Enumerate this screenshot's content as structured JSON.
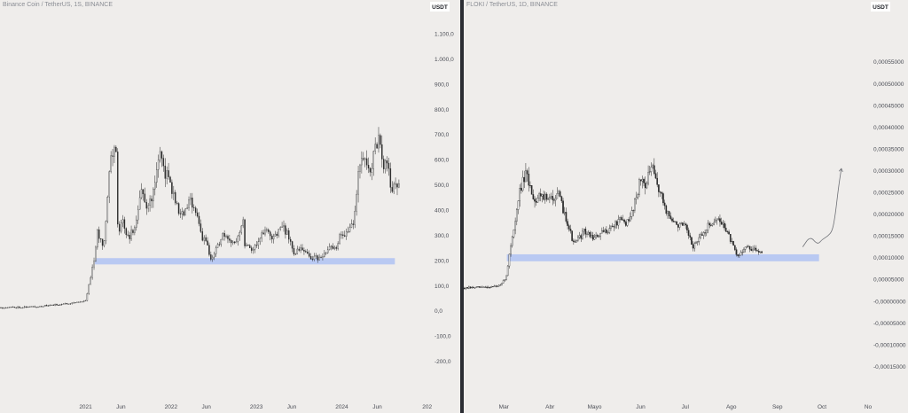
{
  "chart_data": [
    {
      "type": "candlestick",
      "title": "Binance Coin / TetherUS, 1S, BINANCE",
      "ylabel": "USDT",
      "ylim": [
        -250,
        1150
      ],
      "yticks": [
        "1.100,0",
        "1.000,0",
        "900,0",
        "800,0",
        "700,0",
        "600,0",
        "500,0",
        "400,0",
        "300,0",
        "200,0",
        "100,0",
        "0,0",
        "-100,0",
        "-200,0"
      ],
      "ytick_values": [
        1100,
        1000,
        900,
        800,
        700,
        600,
        500,
        400,
        300,
        200,
        100,
        0,
        -100,
        -200
      ],
      "xlim": [
        "2020-01-01",
        "2025-01-01"
      ],
      "xticks": [
        {
          "label": "2021",
          "date": "2021-01-01"
        },
        {
          "label": "Jun",
          "date": "2021-06-01"
        },
        {
          "label": "2022",
          "date": "2022-01-01"
        },
        {
          "label": "Jun",
          "date": "2022-06-01"
        },
        {
          "label": "2023",
          "date": "2023-01-01"
        },
        {
          "label": "Jun",
          "date": "2023-06-01"
        },
        {
          "label": "2024",
          "date": "2024-01-01"
        },
        {
          "label": "Jun",
          "date": "2024-06-01"
        },
        {
          "label": "202",
          "date": "2024-12-31"
        }
      ],
      "price_path": [
        [
          "2020-01-01",
          14
        ],
        [
          "2020-06-01",
          17
        ],
        [
          "2020-10-01",
          28
        ],
        [
          "2020-12-15",
          38
        ],
        [
          "2021-01-01",
          40
        ],
        [
          "2021-02-05",
          200
        ],
        [
          "2021-02-20",
          310
        ],
        [
          "2021-03-20",
          260
        ],
        [
          "2021-04-15",
          600
        ],
        [
          "2021-05-10",
          650
        ],
        [
          "2021-05-20",
          300
        ],
        [
          "2021-06-10",
          360
        ],
        [
          "2021-07-01",
          290
        ],
        [
          "2021-08-01",
          330
        ],
        [
          "2021-08-25",
          490
        ],
        [
          "2021-09-15",
          410
        ],
        [
          "2021-10-20",
          470
        ],
        [
          "2021-11-10",
          640
        ],
        [
          "2021-11-30",
          560
        ],
        [
          "2021-12-25",
          520
        ],
        [
          "2022-01-20",
          430
        ],
        [
          "2022-02-15",
          380
        ],
        [
          "2022-03-05",
          400
        ],
        [
          "2022-03-28",
          440
        ],
        [
          "2022-04-25",
          380
        ],
        [
          "2022-05-10",
          300
        ],
        [
          "2022-06-05",
          260
        ],
        [
          "2022-06-18",
          200
        ],
        [
          "2022-07-10",
          240
        ],
        [
          "2022-08-10",
          300
        ],
        [
          "2022-09-10",
          270
        ],
        [
          "2022-10-10",
          290
        ],
        [
          "2022-11-05",
          360
        ],
        [
          "2022-11-12",
          270
        ],
        [
          "2022-12-20",
          245
        ],
        [
          "2023-01-20",
          300
        ],
        [
          "2023-02-15",
          320
        ],
        [
          "2023-03-10",
          280
        ],
        [
          "2023-04-15",
          340
        ],
        [
          "2023-05-15",
          305
        ],
        [
          "2023-06-12",
          230
        ],
        [
          "2023-07-15",
          245
        ],
        [
          "2023-08-18",
          215
        ],
        [
          "2023-09-15",
          210
        ],
        [
          "2023-10-15",
          215
        ],
        [
          "2023-11-10",
          250
        ],
        [
          "2023-12-05",
          245
        ],
        [
          "2023-12-28",
          310
        ],
        [
          "2024-01-20",
          305
        ],
        [
          "2024-02-20",
          360
        ],
        [
          "2024-03-15",
          570
        ],
        [
          "2024-04-10",
          600
        ],
        [
          "2024-05-01",
          560
        ],
        [
          "2024-06-05",
          690
        ],
        [
          "2024-06-25",
          570
        ],
        [
          "2024-07-15",
          580
        ],
        [
          "2024-08-05",
          460
        ],
        [
          "2024-08-20",
          520
        ],
        [
          "2024-09-05",
          500
        ]
      ],
      "support_zone": {
        "y0": 185,
        "y1": 210,
        "x0": "2021-02-10",
        "x1": "2024-08-15",
        "color": "#b9c9f2"
      }
    },
    {
      "type": "candlestick",
      "title": "FLOKI / TetherUS, 1D, BINANCE",
      "ylabel": "USDT",
      "ylim": [
        -0.000165,
        0.000615
      ],
      "yticks": [
        "0,00055000",
        "0,00050000",
        "0,00045000",
        "0,00040000",
        "0,00035000",
        "0,00030000",
        "0,00025000",
        "0,00020000",
        "0,00015000",
        "0,00010000",
        "0,00005000",
        "-0,00000000",
        "-0,00005000",
        "-0,00010000",
        "-0,00015000"
      ],
      "ytick_values": [
        0.00055,
        0.0005,
        0.00045,
        0.0004,
        0.00035,
        0.0003,
        0.00025,
        0.0002,
        0.00015,
        0.0001,
        5e-05,
        0,
        -5e-05,
        -0.0001,
        -0.00015
      ],
      "xlim": [
        "2024-02-03",
        "2024-11-01"
      ],
      "xticks": [
        {
          "label": "Mar",
          "date": "2024-03-01"
        },
        {
          "label": "Abr",
          "date": "2024-04-01"
        },
        {
          "label": "Mayo",
          "date": "2024-05-01"
        },
        {
          "label": "Jun",
          "date": "2024-06-01"
        },
        {
          "label": "Jul",
          "date": "2024-07-01"
        },
        {
          "label": "Ago",
          "date": "2024-08-01"
        },
        {
          "label": "Sep",
          "date": "2024-09-01"
        },
        {
          "label": "Oct",
          "date": "2024-10-01"
        },
        {
          "label": "No",
          "date": "2024-11-01"
        }
      ],
      "price_path": [
        [
          "2024-02-03",
          3e-05
        ],
        [
          "2024-02-20",
          3.3e-05
        ],
        [
          "2024-02-28",
          3.6e-05
        ],
        [
          "2024-03-03",
          6e-05
        ],
        [
          "2024-03-05",
          0.00012
        ],
        [
          "2024-03-09",
          0.00019
        ],
        [
          "2024-03-12",
          0.00026
        ],
        [
          "2024-03-16",
          0.00029
        ],
        [
          "2024-03-22",
          0.00023
        ],
        [
          "2024-03-26",
          0.00025
        ],
        [
          "2024-03-31",
          0.00023
        ],
        [
          "2024-04-06",
          0.00025
        ],
        [
          "2024-04-13",
          0.00018
        ],
        [
          "2024-04-17",
          0.00013
        ],
        [
          "2024-04-24",
          0.00016
        ],
        [
          "2024-05-01",
          0.000145
        ],
        [
          "2024-05-10",
          0.000165
        ],
        [
          "2024-05-18",
          0.000185
        ],
        [
          "2024-05-24",
          0.00018
        ],
        [
          "2024-06-01",
          0.00028
        ],
        [
          "2024-06-05",
          0.00027
        ],
        [
          "2024-06-08",
          0.00031
        ],
        [
          "2024-06-13",
          0.00026
        ],
        [
          "2024-06-18",
          0.00021
        ],
        [
          "2024-06-23",
          0.00018
        ],
        [
          "2024-07-01",
          0.00017
        ],
        [
          "2024-07-06",
          0.000125
        ],
        [
          "2024-07-12",
          0.00015
        ],
        [
          "2024-07-18",
          0.00018
        ],
        [
          "2024-07-22",
          0.00019
        ],
        [
          "2024-07-28",
          0.00017
        ],
        [
          "2024-08-04",
          0.00011
        ],
        [
          "2024-08-05",
          0.0001
        ],
        [
          "2024-08-10",
          0.000125
        ],
        [
          "2024-08-16",
          0.000118
        ],
        [
          "2024-08-22",
          0.000115
        ]
      ],
      "support_zone": {
        "y0": 9.2e-05,
        "y1": 0.000108,
        "x0": "2024-03-03",
        "x1": "2024-09-29",
        "color": "#b9c9f2"
      },
      "annotation_path": [
        [
          "2024-09-18",
          0.000125
        ],
        [
          "2024-09-23",
          0.00015
        ],
        [
          "2024-09-28",
          0.00013
        ],
        [
          "2024-10-01",
          0.000142
        ],
        [
          "2024-10-05",
          0.00015
        ],
        [
          "2024-10-08",
          0.000162
        ],
        [
          "2024-10-10",
          0.0002
        ],
        [
          "2024-10-12",
          0.00026
        ],
        [
          "2024-10-14",
          0.000305
        ]
      ]
    }
  ]
}
